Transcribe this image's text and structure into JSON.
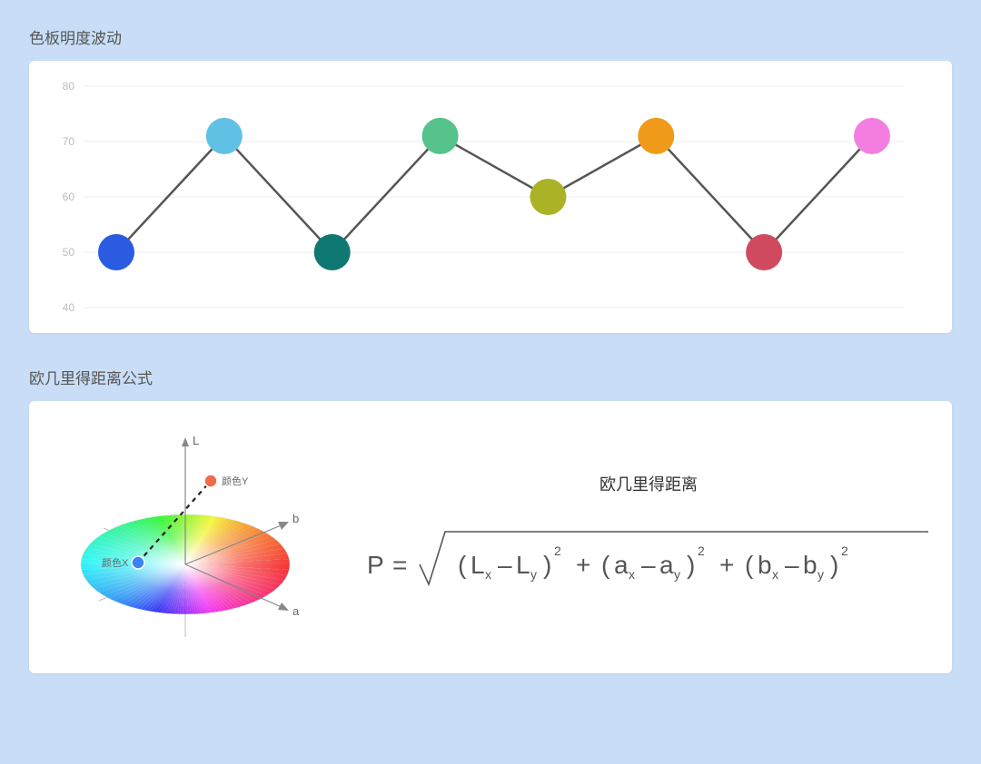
{
  "chart": {
    "title": "色板明度波动",
    "type": "line-with-markers",
    "ylabel_fontsize": 12,
    "ylim": [
      40,
      80
    ],
    "yticks": [
      40,
      50,
      60,
      70,
      80
    ],
    "grid_color": "#eeeeee",
    "line_color": "#555555",
    "line_width": 2.5,
    "background_color": "#ffffff",
    "marker_radius": 20,
    "points": [
      {
        "x": 0,
        "value": 50,
        "color": "#2a5be0"
      },
      {
        "x": 1,
        "value": 71,
        "color": "#61c1e4"
      },
      {
        "x": 2,
        "value": 50,
        "color": "#0f7872"
      },
      {
        "x": 3,
        "value": 71,
        "color": "#55c28c"
      },
      {
        "x": 4,
        "value": 60,
        "color": "#aab326"
      },
      {
        "x": 5,
        "value": 71,
        "color": "#f09a1a"
      },
      {
        "x": 6,
        "value": 50,
        "color": "#d04a5f"
      },
      {
        "x": 7,
        "value": 71,
        "color": "#f47ee0"
      }
    ]
  },
  "formula": {
    "title": "欧几里得距离公式",
    "subtitle": "欧几里得距离",
    "lhs": "P",
    "terms": [
      {
        "base": "L",
        "sub1": "x",
        "sub2": "y"
      },
      {
        "base": "a",
        "sub1": "x",
        "sub2": "y"
      },
      {
        "base": "b",
        "sub1": "x",
        "sub2": "y"
      }
    ],
    "diagram": {
      "axis_L": "L",
      "axis_a": "a",
      "axis_b": "b",
      "point_x_label": "颜色X",
      "point_y_label": "颜色Y",
      "point_x_color": "#3b82f6",
      "point_y_color": "#ef6b4a"
    }
  },
  "page_background": "#c9def6"
}
